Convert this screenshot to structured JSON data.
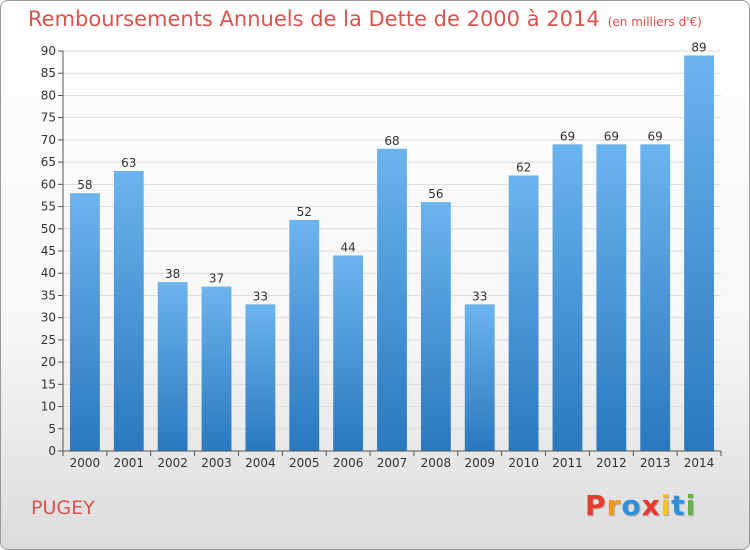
{
  "header": {
    "title": "Remboursements Annuels de la Dette de 2000 à 2014",
    "unit": "(en milliers d'€)"
  },
  "footer": {
    "commune": "PUGEY",
    "logo_letters": [
      "P",
      "r",
      "o",
      "x",
      "i",
      "t",
      "i"
    ]
  },
  "colors": {
    "title": "#d9534f",
    "bar_top": "#6cb4ee",
    "bar_bottom": "#2a78be",
    "logo": [
      "#e63c2f",
      "#f29a1f",
      "#2f8fd8",
      "#e63c2f",
      "#f2c31f",
      "#2f8fd8",
      "#6ab04c"
    ]
  },
  "chart_data": {
    "type": "bar",
    "categories": [
      "2000",
      "2001",
      "2002",
      "2003",
      "2004",
      "2005",
      "2006",
      "2007",
      "2008",
      "2009",
      "2010",
      "2011",
      "2012",
      "2013",
      "2014"
    ],
    "values": [
      58,
      63,
      38,
      37,
      33,
      52,
      44,
      68,
      56,
      33,
      62,
      69,
      69,
      69,
      89
    ],
    "title": "Remboursements Annuels de la Dette de 2000 à 2014",
    "xlabel": "",
    "ylabel": "",
    "ylim": [
      0,
      90
    ],
    "yticks": [
      0,
      5,
      10,
      15,
      20,
      25,
      30,
      35,
      40,
      45,
      50,
      55,
      60,
      65,
      70,
      75,
      80,
      85,
      90
    ],
    "grid": true,
    "legend": "none"
  }
}
